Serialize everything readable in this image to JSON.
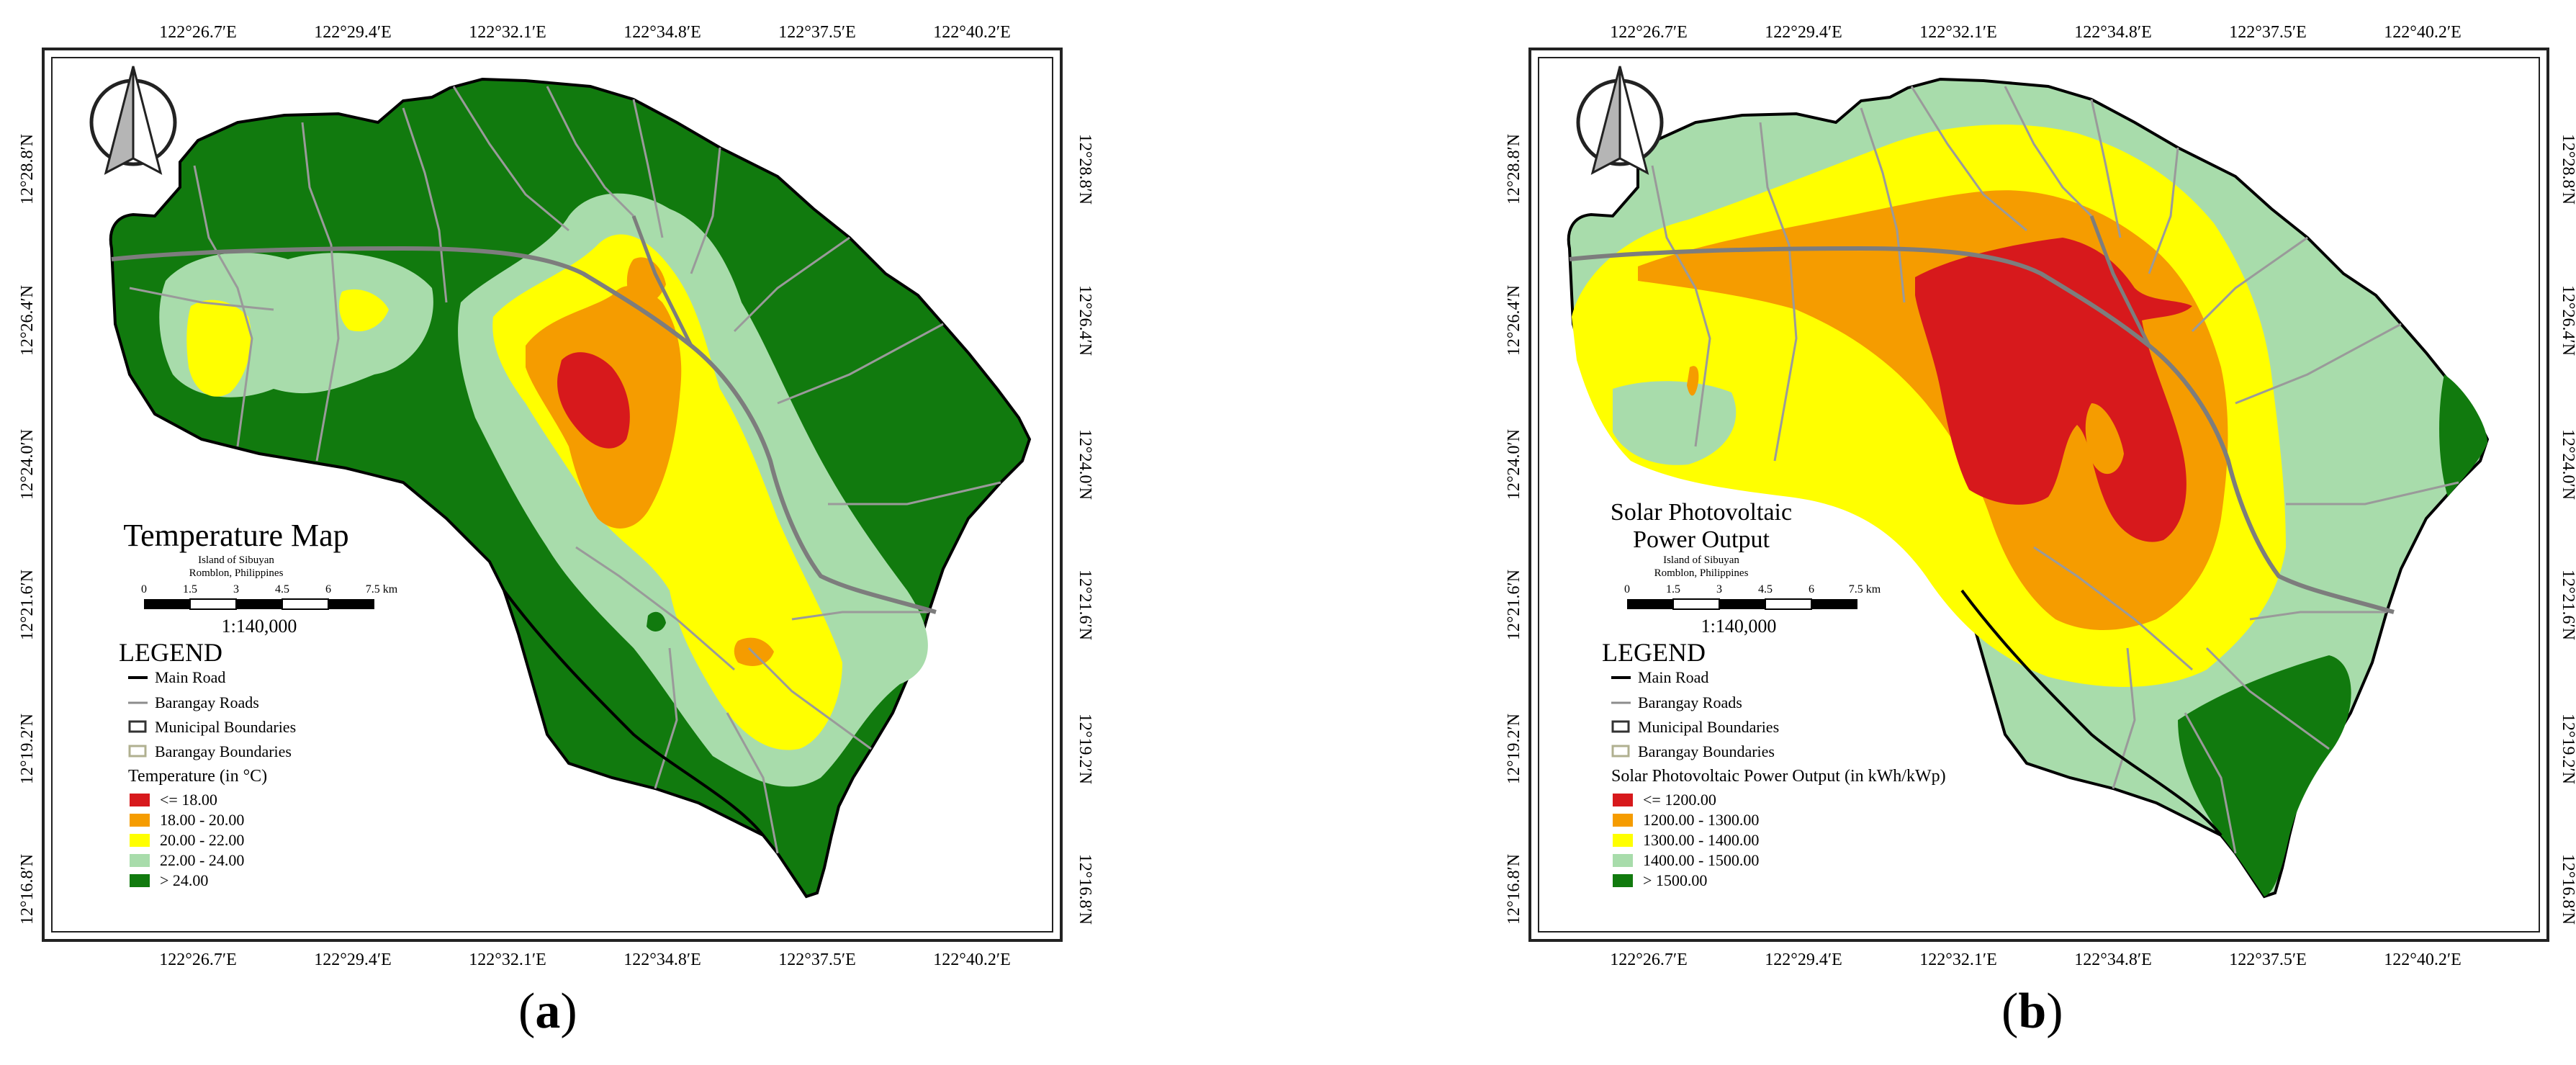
{
  "colors": {
    "class1": "#d7191c",
    "class2": "#f59c00",
    "class3": "#ffff00",
    "class4": "#a8dcab",
    "class5": "#117a0e",
    "road_main": "#000000",
    "road_barangay": "#8c8c8c",
    "boundary_barangay": "#c9c9a8"
  },
  "axis_ticks": {
    "longitudes": [
      "122°26.7′E",
      "122°29.4′E",
      "122°32.1′E",
      "122°34.8′E",
      "122°37.5′E",
      "122°40.2′E"
    ],
    "latitudes": [
      "12°28.8′N",
      "12°26.4′N",
      "12°24.0′N",
      "12°21.6′N",
      "12°19.2′N",
      "12°16.8′N"
    ]
  },
  "panels": [
    {
      "label": "a",
      "title_lines": [
        "Temperature Map"
      ],
      "subtitle_lines": [
        "Island of Sibuyan",
        "Romblon, Philippines"
      ],
      "scale_ticks": [
        "0",
        "1.5",
        "3",
        "4.5",
        "6",
        "7.5 km"
      ],
      "scale_ratio": "1:140,000",
      "legend": {
        "heading": "LEGEND",
        "layers": [
          "Main Road",
          "Barangay Roads",
          "Municipal Boundaries",
          "Barangay Boundaries"
        ],
        "variable_title": "Temperature (in °C)",
        "classes": [
          "<= 18.00",
          "18.00 - 20.00",
          "20.00 - 22.00",
          "22.00 - 24.00",
          "> 24.00"
        ]
      }
    },
    {
      "label": "b",
      "title_lines": [
        "Solar Photovoltaic",
        "Power Output"
      ],
      "subtitle_lines": [
        "Island of Sibuyan",
        "Romblon, Philippines"
      ],
      "scale_ticks": [
        "0",
        "1.5",
        "3",
        "4.5",
        "6",
        "7.5 km"
      ],
      "scale_ratio": "1:140,000",
      "legend": {
        "heading": "LEGEND",
        "layers": [
          "Main Road",
          "Barangay Roads",
          "Municipal Boundaries",
          "Barangay Boundaries"
        ],
        "variable_title": "Solar Photovoltaic Power Output (in kWh/kWp)",
        "classes": [
          "<= 1200.00",
          "1200.00 - 1300.00",
          "1300.00 - 1400.00",
          "1400.00 - 1500.00",
          "> 1500.00"
        ]
      }
    }
  ]
}
